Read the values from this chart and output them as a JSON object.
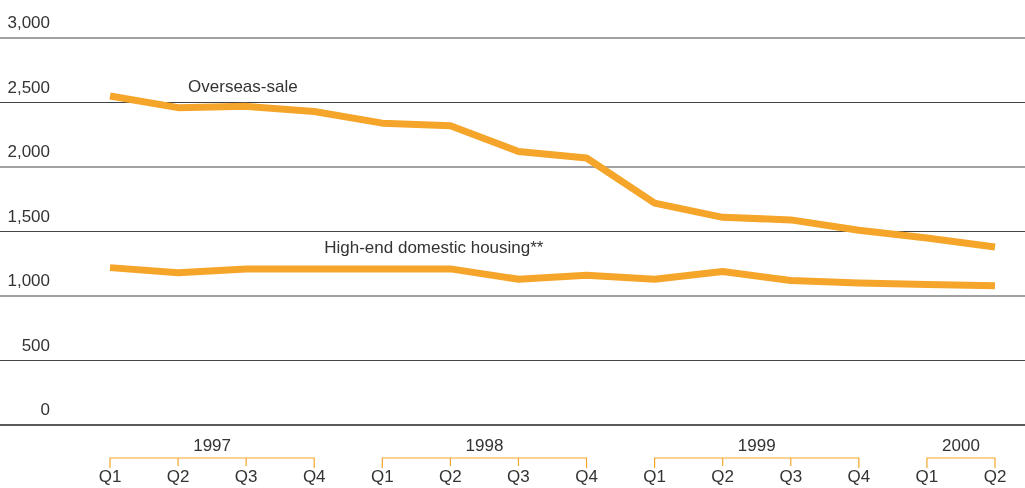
{
  "chart_data": {
    "type": "line",
    "categories": [
      "Q1",
      "Q2",
      "Q3",
      "Q4",
      "Q1",
      "Q2",
      "Q3",
      "Q4",
      "Q1",
      "Q2",
      "Q3",
      "Q4",
      "Q1",
      "Q2"
    ],
    "series": [
      {
        "name": "Overseas-sale",
        "color": "#f5a52a",
        "values": [
          2550,
          2460,
          2470,
          2430,
          2340,
          2320,
          2120,
          2070,
          1720,
          1610,
          1590,
          1510,
          1450,
          1380
        ]
      },
      {
        "name": "High-end domestic housing**",
        "color": "#f5a52a",
        "values": [
          1220,
          1180,
          1210,
          1210,
          1210,
          1210,
          1130,
          1160,
          1130,
          1190,
          1120,
          1100,
          1090,
          1080
        ]
      }
    ],
    "annotations": [
      "1997",
      "1998",
      "1999",
      "2000"
    ],
    "ylim": [
      0,
      3000
    ],
    "yticks": [
      {
        "value": 0,
        "label": "0"
      },
      {
        "value": 500,
        "label": "500"
      },
      {
        "value": 1000,
        "label": "1,000"
      },
      {
        "value": 1500,
        "label": "1,500"
      },
      {
        "value": 2000,
        "label": "2,000"
      },
      {
        "value": 2500,
        "label": "2,500"
      },
      {
        "value": 3000,
        "label": "3,000"
      }
    ],
    "grid": "y",
    "legend": false,
    "marker": "none",
    "line_style": "solid"
  }
}
